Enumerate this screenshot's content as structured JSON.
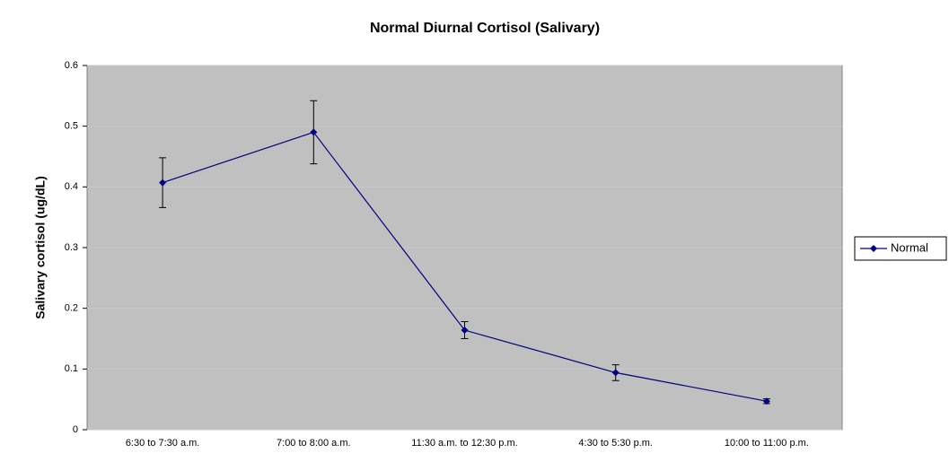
{
  "chart_data": {
    "type": "line",
    "title": "Normal Diurnal Cortisol (Salivary)",
    "y_label": "Salivary cortisol (ug/dL)",
    "categories": [
      "6:30 to 7:30 a.m.",
      "7:00 to 8:00 a.m.",
      "11:30 a.m. to 12:30 p.m.",
      "4:30 to 5:30 p.m.",
      "10:00 to 11:00 p.m."
    ],
    "series": [
      {
        "name": "Normal",
        "color": "#000080",
        "values": [
          0.407,
          0.49,
          0.164,
          0.094,
          0.047
        ],
        "errors": [
          0.041,
          0.052,
          0.014,
          0.013,
          0.004
        ]
      }
    ],
    "ylim": [
      0,
      0.6
    ],
    "yticks": [
      0,
      0.1,
      0.2,
      0.3,
      0.4,
      0.5,
      0.6
    ],
    "grid": true,
    "legend": "right"
  }
}
